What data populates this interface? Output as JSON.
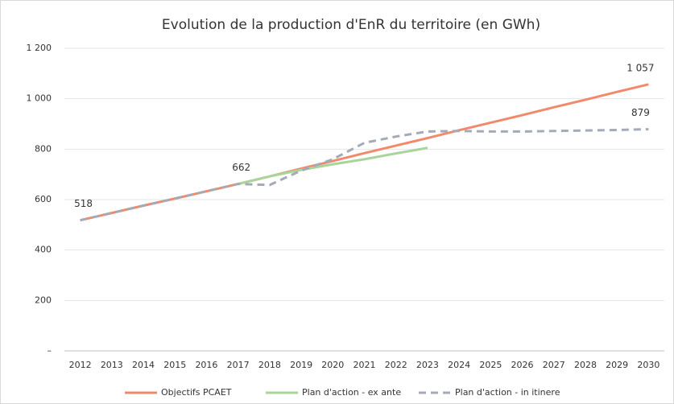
{
  "chart_data": {
    "type": "line",
    "title": "Evolution de la production d'EnR du territoire (en GWh)",
    "categories": [
      "2012",
      "2013",
      "2014",
      "2015",
      "2016",
      "2017",
      "2018",
      "2019",
      "2020",
      "2021",
      "2022",
      "2023",
      "2024",
      "2025",
      "2026",
      "2027",
      "2028",
      "2029",
      "2030"
    ],
    "series": [
      {
        "name": "Objectifs PCAET",
        "color": "#f08a6b",
        "dash": false,
        "values": [
          518,
          547,
          576,
          604,
          633,
          662,
          692,
          723,
          753,
          784,
          814,
          844,
          875,
          905,
          935,
          966,
          996,
          1027,
          1057
        ],
        "value_labels": [
          "518",
          null,
          null,
          null,
          null,
          "662",
          null,
          null,
          null,
          null,
          null,
          null,
          null,
          null,
          null,
          null,
          null,
          null,
          "1 057"
        ]
      },
      {
        "name": "Plan d'action - ex ante",
        "color": "#a9d59a",
        "dash": false,
        "values": [
          null,
          null,
          null,
          null,
          null,
          662,
          692,
          718,
          740,
          760,
          783,
          805,
          null,
          null,
          null,
          null,
          null,
          null,
          null
        ]
      },
      {
        "name": "Plan d'action - in itinere",
        "color": "#a4abb6",
        "dash": true,
        "values": [
          518,
          547,
          576,
          604,
          633,
          662,
          658,
          715,
          760,
          825,
          850,
          870,
          872,
          870,
          870,
          872,
          874,
          876,
          879
        ],
        "value_labels": [
          null,
          null,
          null,
          null,
          null,
          null,
          null,
          null,
          null,
          null,
          null,
          null,
          null,
          null,
          null,
          null,
          null,
          null,
          "879"
        ]
      }
    ],
    "ylim": [
      0,
      1200
    ],
    "yticks": [
      {
        "value": 0,
        "label": "–"
      },
      200,
      400,
      600,
      800,
      {
        "value": 1000,
        "label": "1 000"
      },
      {
        "value": 1200,
        "label": "1 200"
      }
    ],
    "grid": true,
    "legend": "bottom"
  }
}
